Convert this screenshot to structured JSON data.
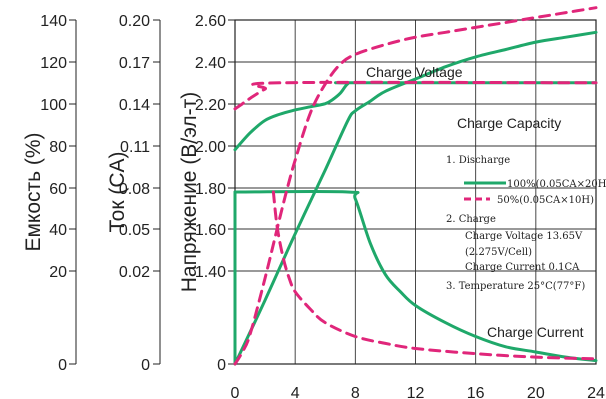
{
  "chart_data": {
    "type": "line",
    "title": "",
    "xlabel": "",
    "x_ticks": [
      "0",
      "4",
      "8",
      "12",
      "16",
      "20",
      "24"
    ],
    "xlim": [
      0,
      24
    ],
    "grid": true,
    "axes": [
      {
        "label": "Емкость (%)",
        "ticks": [
          "140",
          "120",
          "100",
          "80",
          "60",
          "40",
          "20",
          "0"
        ]
      },
      {
        "label": "Ток (CA)",
        "ticks": [
          "0.20",
          "0.17",
          "0.14",
          "0.11",
          "0.08",
          "0.05",
          "0.02",
          "0"
        ]
      },
      {
        "label": "Напряжение (В/эл-т)",
        "ticks": [
          "2.60",
          "2.40",
          "2.20",
          "2.00",
          "1.80",
          "1.60",
          "1.40",
          "0"
        ]
      }
    ],
    "curve_labels": {
      "voltage": "Charge Voltage",
      "capacity": "Charge Capacity",
      "current": "Charge Current"
    },
    "legend": {
      "discharge_heading": "1. Discharge",
      "items": [
        {
          "label": "100%(0.05CA×20H)",
          "color": "#1fa86a",
          "style": "solid"
        },
        {
          "label": "50%(0.05CA×10H)",
          "color": "#e0267a",
          "style": "dashed"
        }
      ],
      "charge_heading": "2. Charge",
      "charge_lines": [
        "Charge Voltage 13.65V",
        "(2.275V/Cell)",
        "Charge Current 0.1CA"
      ],
      "temperature": "3. Temperature 25°C(77°F)"
    },
    "series": [
      {
        "name": "100%(0.05CA×20H)",
        "color": "#1fa86a",
        "style": "solid",
        "voltage": [
          [
            0,
            1.98
          ],
          [
            1,
            2.06
          ],
          [
            2,
            2.12
          ],
          [
            3,
            2.15
          ],
          [
            4,
            2.17
          ],
          [
            5,
            2.185
          ],
          [
            6,
            2.2
          ],
          [
            6.5,
            2.22
          ],
          [
            7,
            2.25
          ],
          [
            7.5,
            2.295
          ],
          [
            8,
            2.3
          ],
          [
            24,
            2.3
          ]
        ],
        "capacity": [
          [
            0,
            0
          ],
          [
            2,
            26
          ],
          [
            4,
            53
          ],
          [
            6,
            79
          ],
          [
            7.5,
            99
          ],
          [
            8,
            103
          ],
          [
            9,
            107
          ],
          [
            10,
            111
          ],
          [
            12,
            116
          ],
          [
            14,
            121
          ],
          [
            16,
            125
          ],
          [
            18,
            128
          ],
          [
            20,
            131
          ],
          [
            22,
            133
          ],
          [
            24,
            135
          ]
        ],
        "current": [
          [
            0,
            0.1
          ],
          [
            7.5,
            0.1
          ],
          [
            8,
            0.096
          ],
          [
            9,
            0.07
          ],
          [
            10,
            0.052
          ],
          [
            11,
            0.042
          ],
          [
            12,
            0.034
          ],
          [
            14,
            0.024
          ],
          [
            16,
            0.016
          ],
          [
            18,
            0.01
          ],
          [
            20,
            0.007
          ],
          [
            22,
            0.004
          ],
          [
            24,
            0.002
          ]
        ]
      },
      {
        "name": "50%(0.05CA×10H)",
        "color": "#e0267a",
        "style": "dashed",
        "voltage": [
          [
            0,
            2.175
          ],
          [
            0.5,
            2.2
          ],
          [
            1,
            2.225
          ],
          [
            2,
            2.27
          ],
          [
            3,
            2.3
          ],
          [
            24,
            2.3
          ]
        ],
        "capacity": [
          [
            0,
            0
          ],
          [
            0.5,
            5
          ],
          [
            1,
            12
          ],
          [
            2,
            35
          ],
          [
            3,
            60
          ],
          [
            3.5,
            72
          ],
          [
            4,
            83
          ],
          [
            5,
            102
          ],
          [
            6,
            114
          ],
          [
            7,
            122
          ],
          [
            8,
            126
          ],
          [
            10,
            130
          ],
          [
            12,
            133
          ],
          [
            14,
            135
          ],
          [
            16,
            137
          ],
          [
            18,
            139
          ],
          [
            20,
            141
          ],
          [
            22,
            143
          ],
          [
            24,
            145
          ]
        ],
        "current": [
          [
            2.55,
            0.1
          ],
          [
            2.8,
            0.08
          ],
          [
            3.2,
            0.062
          ],
          [
            3.6,
            0.05
          ],
          [
            4,
            0.042
          ],
          [
            5,
            0.032
          ],
          [
            6,
            0.024
          ],
          [
            8,
            0.016
          ],
          [
            10,
            0.012
          ],
          [
            12,
            0.009
          ],
          [
            16,
            0.006
          ],
          [
            20,
            0.004
          ],
          [
            24,
            0.003
          ]
        ]
      }
    ]
  }
}
